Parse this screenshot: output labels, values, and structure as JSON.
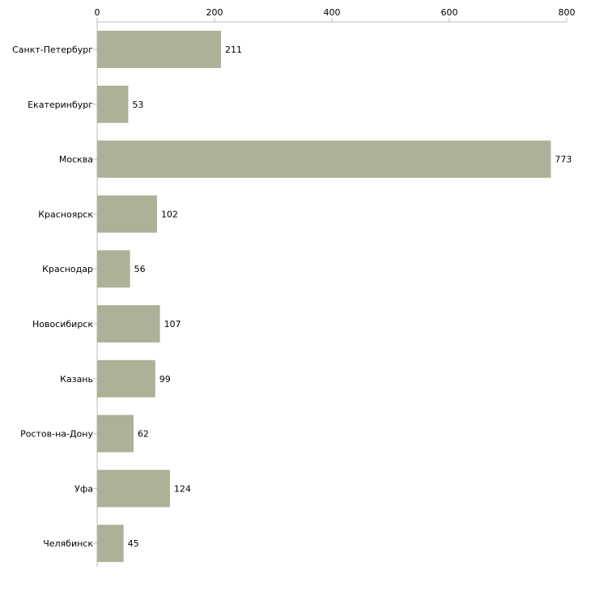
{
  "chart_data": {
    "type": "bar",
    "orientation": "horizontal",
    "title": "",
    "xlabel": "",
    "ylabel": "",
    "xlim": [
      0,
      800
    ],
    "x_ticks": [
      0,
      200,
      400,
      600,
      800
    ],
    "x_tick_labels": [
      "0",
      "200",
      "400",
      "600",
      "800"
    ],
    "x_axis_position": "top",
    "grid": false,
    "legend": "none",
    "bar_color": "#acb197",
    "categories": [
      "Санкт-Петербург",
      "Екатеринбург",
      "Москва",
      "Красноярск",
      "Краснодар",
      "Новосибирск",
      "Казань",
      "Ростов-на-Дону",
      "Уфа",
      "Челябинск"
    ],
    "values": [
      211,
      53,
      773,
      102,
      56,
      107,
      99,
      62,
      124,
      45
    ],
    "value_labels": [
      "211",
      "53",
      "773",
      "102",
      "56",
      "107",
      "99",
      "62",
      "124",
      "45"
    ]
  }
}
